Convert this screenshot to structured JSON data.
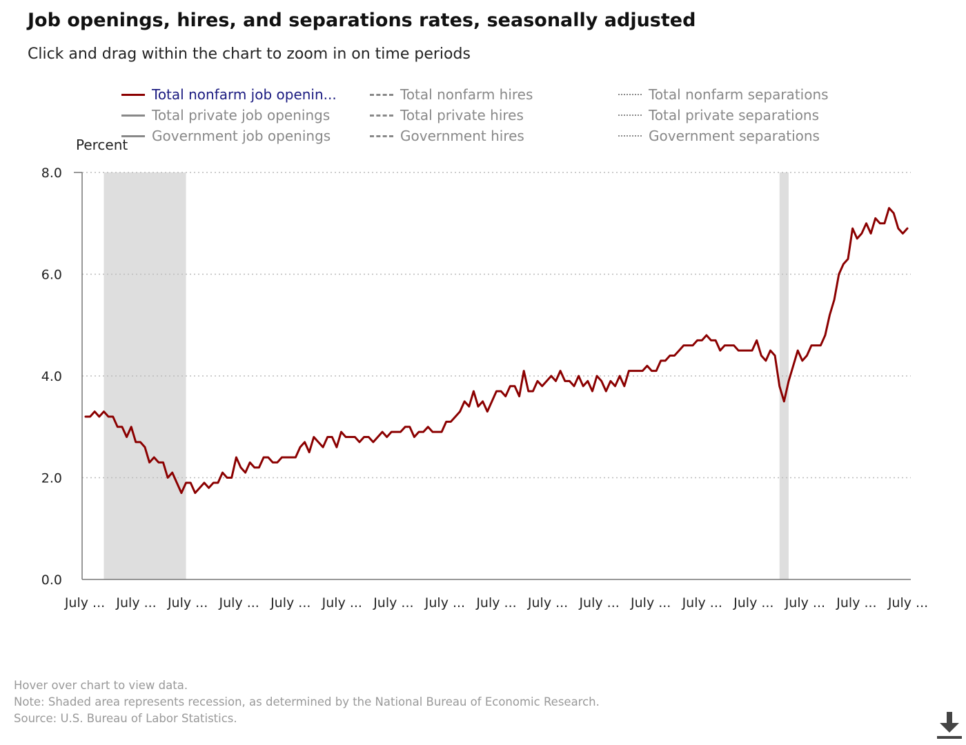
{
  "title": "Job openings, hires, and separations rates, seasonally adjusted",
  "subtitle": "Click and drag within the chart to zoom in on time periods",
  "legend": [
    {
      "label": "Total nonfarm job openin...",
      "style": "solid",
      "active": true,
      "color": "#8b0000"
    },
    {
      "label": "Total nonfarm hires",
      "style": "dashed",
      "active": false,
      "color": "#888888"
    },
    {
      "label": "Total nonfarm separations",
      "style": "dotted",
      "active": false,
      "color": "#888888"
    },
    {
      "label": "Total private job openings",
      "style": "solid",
      "active": false,
      "color": "#888888"
    },
    {
      "label": "Total private hires",
      "style": "dashed",
      "active": false,
      "color": "#888888"
    },
    {
      "label": "Total private separations",
      "style": "dotted",
      "active": false,
      "color": "#888888"
    },
    {
      "label": "Government job openings",
      "style": "solid",
      "active": false,
      "color": "#888888"
    },
    {
      "label": "Government hires",
      "style": "dashed",
      "active": false,
      "color": "#888888"
    },
    {
      "label": "Government separations",
      "style": "dotted",
      "active": false,
      "color": "#888888"
    }
  ],
  "footer": {
    "hover_note": "Hover over chart to view data.",
    "note": "Note: Shaded area represents recession, as determined by the National Bureau of Economic Research.",
    "source": "Source: U.S. Bureau of Labor Statistics."
  },
  "download_icon": "download-arrow-icon",
  "chart_data": {
    "type": "line",
    "ylabel": "Percent",
    "ylim": [
      0,
      8
    ],
    "yticks": [
      "0.0",
      "2.0",
      "4.0",
      "6.0",
      "8.0"
    ],
    "xticks": [
      "July ...",
      "July ...",
      "July ...",
      "July ...",
      "July ...",
      "July ...",
      "July ...",
      "July ...",
      "July ...",
      "July ...",
      "July ...",
      "July ...",
      "July ...",
      "July ...",
      "July ...",
      "July ...",
      "July ..."
    ],
    "grid": "horizontal dotted",
    "recessions": [
      {
        "start_month_index": 4,
        "end_month_index": 22
      },
      {
        "start_month_index": 152,
        "end_month_index": 154
      }
    ],
    "series": [
      {
        "name": "Total nonfarm job openin...",
        "color": "#8b0000",
        "values": [
          3.2,
          3.2,
          3.3,
          3.2,
          3.3,
          3.2,
          3.2,
          3.0,
          3.0,
          2.8,
          3.0,
          2.7,
          2.7,
          2.6,
          2.3,
          2.4,
          2.3,
          2.3,
          2.0,
          2.1,
          1.9,
          1.7,
          1.9,
          1.9,
          1.7,
          1.8,
          1.9,
          1.8,
          1.9,
          1.9,
          2.1,
          2.0,
          2.0,
          2.4,
          2.2,
          2.1,
          2.3,
          2.2,
          2.2,
          2.4,
          2.4,
          2.3,
          2.3,
          2.4,
          2.4,
          2.4,
          2.4,
          2.6,
          2.7,
          2.5,
          2.8,
          2.7,
          2.6,
          2.8,
          2.8,
          2.6,
          2.9,
          2.8,
          2.8,
          2.8,
          2.7,
          2.8,
          2.8,
          2.7,
          2.8,
          2.9,
          2.8,
          2.9,
          2.9,
          2.9,
          3.0,
          3.0,
          2.8,
          2.9,
          2.9,
          3.0,
          2.9,
          2.9,
          2.9,
          3.1,
          3.1,
          3.2,
          3.3,
          3.5,
          3.4,
          3.7,
          3.4,
          3.5,
          3.3,
          3.5,
          3.7,
          3.7,
          3.6,
          3.8,
          3.8,
          3.6,
          4.1,
          3.7,
          3.7,
          3.9,
          3.8,
          3.9,
          4.0,
          3.9,
          4.1,
          3.9,
          3.9,
          3.8,
          4.0,
          3.8,
          3.9,
          3.7,
          4.0,
          3.9,
          3.7,
          3.9,
          3.8,
          4.0,
          3.8,
          4.1,
          4.1,
          4.1,
          4.1,
          4.2,
          4.1,
          4.1,
          4.3,
          4.3,
          4.4,
          4.4,
          4.5,
          4.6,
          4.6,
          4.6,
          4.7,
          4.7,
          4.8,
          4.7,
          4.7,
          4.5,
          4.6,
          4.6,
          4.6,
          4.5,
          4.5,
          4.5,
          4.5,
          4.7,
          4.4,
          4.3,
          4.5,
          4.4,
          3.8,
          3.5,
          3.9,
          4.2,
          4.5,
          4.3,
          4.4,
          4.6,
          4.6,
          4.6,
          4.8,
          5.2,
          5.5,
          6.0,
          6.2,
          6.3,
          6.9,
          6.7,
          6.8,
          7.0,
          6.8,
          7.1,
          7.0,
          7.0,
          7.3,
          7.2,
          6.9,
          6.8,
          6.9
        ]
      }
    ]
  }
}
